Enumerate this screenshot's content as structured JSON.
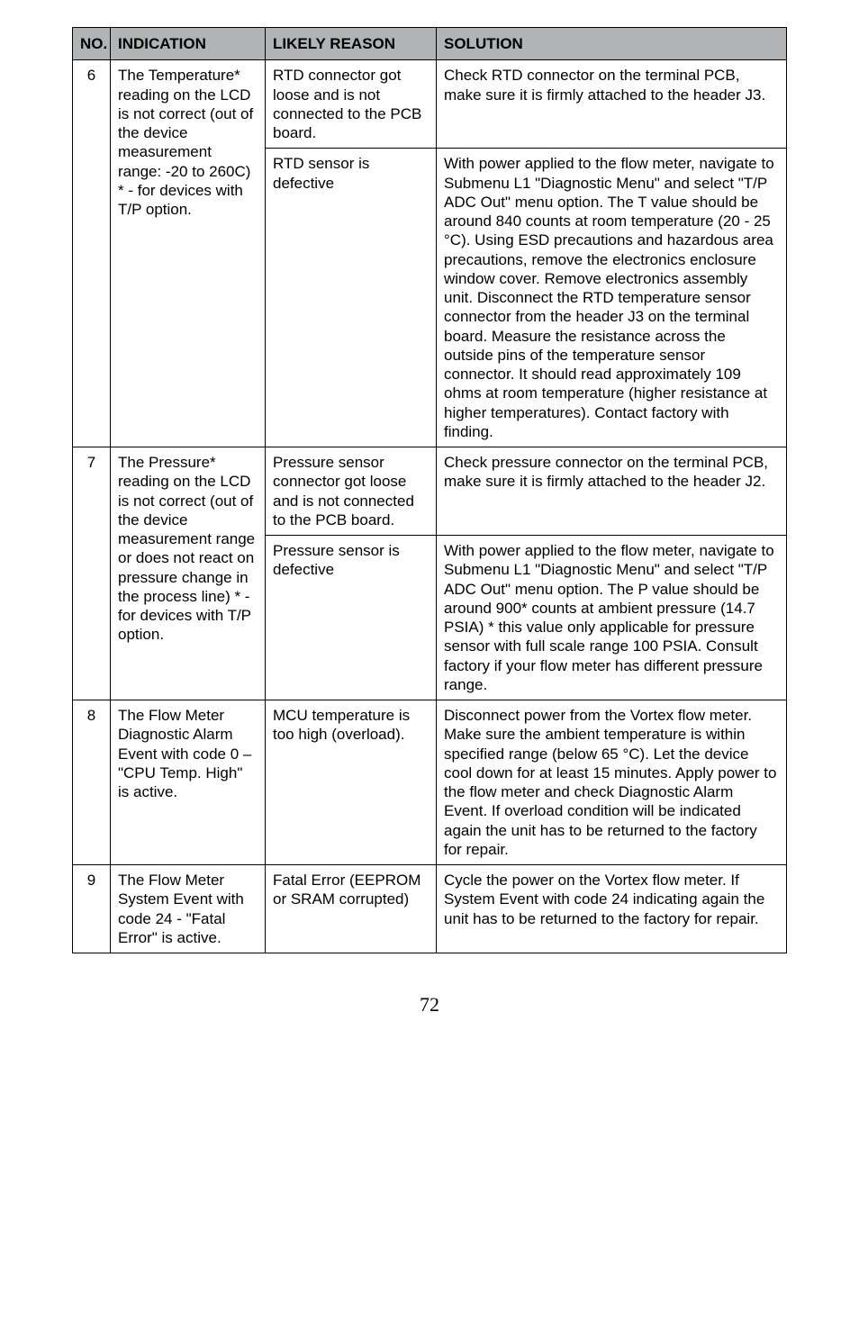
{
  "colors": {
    "header_bg": "#b1b3b5",
    "border": "#000000",
    "text": "#000000",
    "page_bg": "#ffffff"
  },
  "typography": {
    "body_font": "Arial, Helvetica, sans-serif",
    "body_size_pt": 12,
    "page_num_font": "Times New Roman, serif",
    "page_num_size_pt": 16
  },
  "table": {
    "headers": {
      "no": "NO.",
      "indication": "INDICATION",
      "reason": "LIKELY REASON",
      "solution": "SOLUTION"
    },
    "rows": [
      {
        "no": "6",
        "indication": "The Temperature* reading on the LCD is not correct (out of the device measurement range: -20 to 260C)\n* - for devices with T/P option.",
        "sub": [
          {
            "reason": "RTD connector got loose and is not connected to the PCB board.",
            "solution": "Check RTD connector on the terminal PCB, make sure it is firmly attached to the header J3."
          },
          {
            "reason": "RTD sensor is defective",
            "solution": "With power applied to the flow meter, navigate to Submenu L1 \"Diagnostic Menu\" and select \"T/P ADC Out\" menu option. The T value should be around 840 counts at room temperature (20 - 25 °C). Using ESD precautions and hazardous area precautions, remove the electronics enclosure window cover. Remove electronics assembly unit. Disconnect the RTD temperature sensor connector from the header J3 on the terminal board. Measure the resistance across the outside pins of the temperature sensor connector. It should read approximately 109 ohms at room temperature (higher resistance at higher temperatures). Contact factory with finding."
          }
        ]
      },
      {
        "no": "7",
        "indication": "The Pressure* reading on the LCD is not correct (out of the device measurement range or does not react on pressure change in the process line)\n* - for devices with T/P option.",
        "sub": [
          {
            "reason": "Pressure sensor connector got loose and is not connected to the PCB board.",
            "solution": "Check pressure connector on the terminal PCB, make sure it is firmly attached to the header J2."
          },
          {
            "reason": "Pressure sensor is defective",
            "solution": "With power applied to the flow meter, navigate to Submenu L1 \"Diagnostic Menu\" and select \"T/P ADC Out\" menu option. The P value should be around 900* counts at ambient pressure (14.7 PSIA) * this value only applicable for pressure sensor with full scale range 100 PSIA. Consult factory if your flow meter has different pressure range."
          }
        ]
      },
      {
        "no": "8",
        "indication": "The Flow Meter Diagnostic Alarm Event with code 0 – \"CPU Temp. High\" is active.",
        "sub": [
          {
            "reason": "MCU temperature is too high (overload).",
            "solution": "Disconnect power from the Vortex flow meter. Make sure the ambient temperature is within specified range (below 65 °C). Let the device cool down for at least 15 minutes. Apply power to the flow meter and check Diagnostic Alarm Event. If overload condition will be indicated again the unit has to be returned to the factory for repair."
          }
        ]
      },
      {
        "no": "9",
        "indication": "The Flow Meter System Event with code 24 - \"Fatal Error\" is active.",
        "sub": [
          {
            "reason": "Fatal Error (EEPROM or SRAM  corrupted)",
            "solution": "Cycle the power on the Vortex flow meter. If System Event with code 24 indicating again the unit has to be returned to the factory for repair."
          }
        ]
      }
    ]
  },
  "page_number": "72"
}
